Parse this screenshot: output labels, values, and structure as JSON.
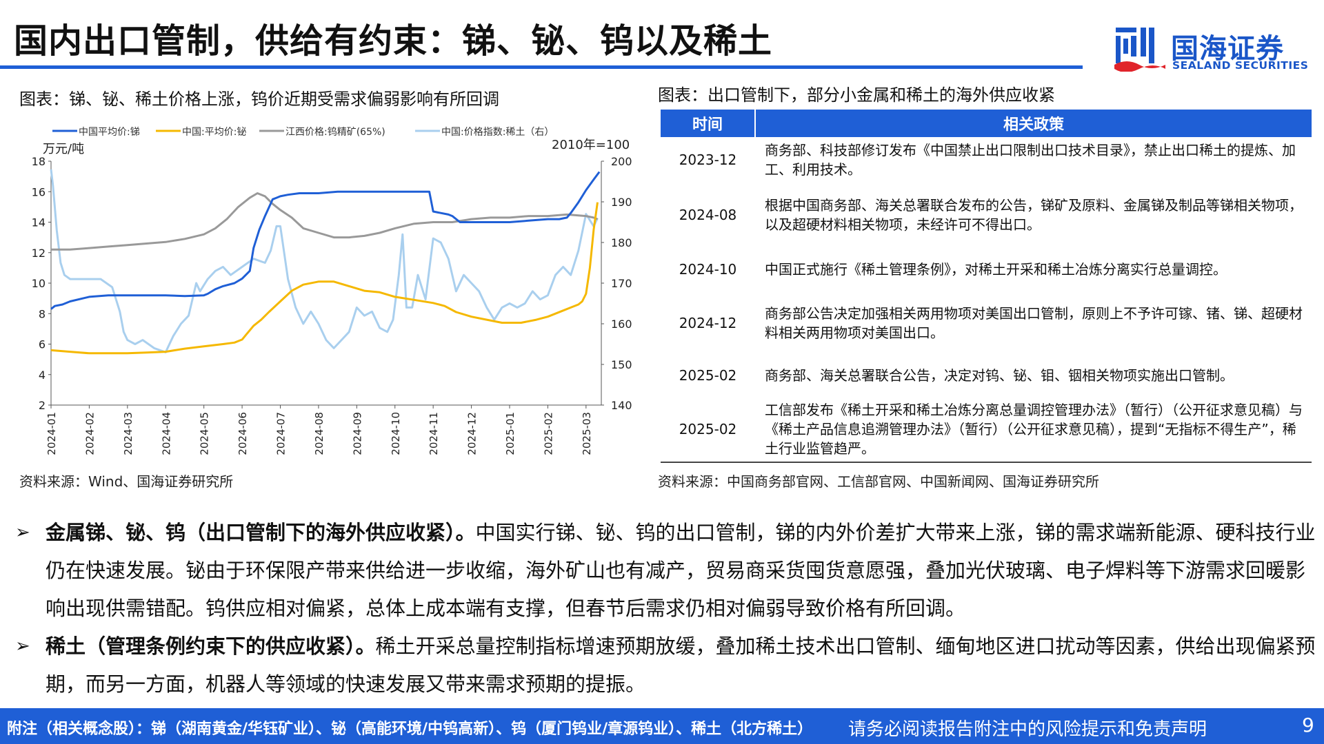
{
  "header": {
    "title": "国内出口管制，供给有约束：锑、铋、钨以及稀土"
  },
  "logo": {
    "name_cn": "国海证券",
    "name_en": "SEALAND SECURITIES"
  },
  "left_figure": {
    "caption": "图表：锑、铋、稀土价格上涨，钨价近期受需求偏弱影响有所回调",
    "source": "资料来源：Wind、国海证券研究所"
  },
  "chart_data": {
    "type": "line",
    "legend_position": "top",
    "left_unit": "万元/吨",
    "right_unit": "2010年=100",
    "x_ticks": [
      "2024-01",
      "2024-02",
      "2024-03",
      "2024-04",
      "2024-05",
      "2024-06",
      "2024-07",
      "2024-08",
      "2024-09",
      "2024-10",
      "2024-11",
      "2024-12",
      "2025-01",
      "2025-02",
      "2025-03"
    ],
    "ylim": [
      2,
      18
    ],
    "y_ticks": [
      2,
      4,
      6,
      8,
      10,
      12,
      14,
      16,
      18
    ],
    "ylim_right": [
      140,
      200
    ],
    "y_ticks_right": [
      140,
      150,
      160,
      170,
      180,
      190,
      200
    ],
    "x_domain": [
      0,
      14.4
    ],
    "series": [
      {
        "name": "中国平均价:锑",
        "color": "#1f5fd6",
        "axis": "left",
        "x": [
          0,
          0.1,
          0.3,
          0.5,
          1,
          1.5,
          2,
          2.5,
          3,
          3.5,
          4,
          4.1,
          4.3,
          4.5,
          4.8,
          5.0,
          5.2,
          5.3,
          5.45,
          5.6,
          5.8,
          5.9,
          6.0,
          6.2,
          6.5,
          7.0,
          7.5,
          8.0,
          8.5,
          9.0,
          9.5,
          9.9,
          10.0,
          10.2,
          10.4,
          10.5,
          10.7,
          11.0,
          11.5,
          12.0,
          12.5,
          13.0,
          13.3,
          13.5,
          13.6,
          13.8,
          14.0,
          14.2,
          14.35
        ],
        "y": [
          8.3,
          8.5,
          8.6,
          8.8,
          9.1,
          9.2,
          9.2,
          9.2,
          9.2,
          9.15,
          9.2,
          9.3,
          9.6,
          9.8,
          10.0,
          10.3,
          10.8,
          12.3,
          13.5,
          14.4,
          15.5,
          15.6,
          15.7,
          15.8,
          15.9,
          15.9,
          16.0,
          16.0,
          16.0,
          16.0,
          16.0,
          16.0,
          14.7,
          14.6,
          14.5,
          14.4,
          14.0,
          14.0,
          14.0,
          14.0,
          14.1,
          14.2,
          14.2,
          14.3,
          14.6,
          15.3,
          16.1,
          16.8,
          17.3
        ]
      },
      {
        "name": "中国:平均价:铋",
        "color": "#f5b800",
        "axis": "left",
        "x": [
          0,
          0.5,
          1,
          1.5,
          2,
          2.5,
          3,
          3.5,
          4,
          4.5,
          4.8,
          4.9,
          5.0,
          5.1,
          5.3,
          5.5,
          5.7,
          6.0,
          6.3,
          6.6,
          7.0,
          7.4,
          7.8,
          8.2,
          8.6,
          9.0,
          9.5,
          10.0,
          10.3,
          10.6,
          11.0,
          11.4,
          11.8,
          12.3,
          12.7,
          13.0,
          13.4,
          13.6,
          13.8,
          13.9,
          14.0,
          14.1,
          14.2,
          14.3
        ],
        "y": [
          5.6,
          5.5,
          5.4,
          5.4,
          5.4,
          5.45,
          5.5,
          5.7,
          5.85,
          6.0,
          6.1,
          6.2,
          6.3,
          6.6,
          7.2,
          7.6,
          8.1,
          8.8,
          9.5,
          9.9,
          10.1,
          10.1,
          9.8,
          9.5,
          9.4,
          9.1,
          8.9,
          8.7,
          8.5,
          8.1,
          7.8,
          7.6,
          7.4,
          7.4,
          7.6,
          7.8,
          8.2,
          8.4,
          8.6,
          8.8,
          9.3,
          11.0,
          13.5,
          15.3
        ]
      },
      {
        "name": "江西价格:钨精矿(65%)",
        "color": "#999999",
        "axis": "left",
        "x": [
          0,
          0.5,
          1,
          1.5,
          2,
          2.5,
          3,
          3.5,
          4,
          4.3,
          4.6,
          4.9,
          5.2,
          5.4,
          5.6,
          5.8,
          6.0,
          6.3,
          6.6,
          7.0,
          7.4,
          7.8,
          8.2,
          8.6,
          9.0,
          9.5,
          10.0,
          10.5,
          11.0,
          11.5,
          12.0,
          12.5,
          13.0,
          13.5,
          14.0,
          14.2,
          14.3
        ],
        "y": [
          12.2,
          12.2,
          12.3,
          12.4,
          12.5,
          12.6,
          12.7,
          12.9,
          13.2,
          13.6,
          14.2,
          15.0,
          15.6,
          15.9,
          15.7,
          15.2,
          14.8,
          14.3,
          13.6,
          13.3,
          13.0,
          13.0,
          13.1,
          13.3,
          13.6,
          13.9,
          14.0,
          14.0,
          14.2,
          14.3,
          14.3,
          14.4,
          14.4,
          14.5,
          14.4,
          14.3,
          14.2
        ]
      },
      {
        "name": "中国:价格指数:稀土（右）",
        "color": "#a9cfee",
        "axis": "right",
        "x": [
          0,
          0.05,
          0.15,
          0.25,
          0.35,
          0.5,
          0.7,
          1.0,
          1.3,
          1.6,
          1.8,
          1.9,
          2.0,
          2.2,
          2.4,
          2.7,
          3.0,
          3.2,
          3.4,
          3.6,
          3.8,
          3.9,
          4.1,
          4.3,
          4.5,
          4.7,
          5.0,
          5.3,
          5.6,
          5.75,
          5.9,
          6.0,
          6.2,
          6.4,
          6.6,
          6.8,
          7.0,
          7.2,
          7.4,
          7.6,
          7.8,
          8.0,
          8.2,
          8.4,
          8.6,
          8.8,
          8.95,
          9.1,
          9.2,
          9.3,
          9.45,
          9.6,
          9.8,
          10.0,
          10.2,
          10.4,
          10.6,
          10.8,
          11.0,
          11.2,
          11.4,
          11.6,
          11.8,
          12.0,
          12.2,
          12.4,
          12.6,
          12.8,
          13.0,
          13.2,
          13.4,
          13.6,
          13.8,
          14.0,
          14.2,
          14.3
        ],
        "y": [
          198,
          194,
          183,
          175,
          172,
          171,
          171,
          171,
          171,
          169,
          163,
          158,
          156,
          155,
          156,
          154,
          153,
          157,
          160,
          162,
          170,
          168,
          171,
          173,
          174,
          172,
          174,
          176,
          175,
          178,
          184,
          184,
          171,
          164,
          160,
          163,
          160,
          156,
          154,
          156,
          158,
          164,
          162,
          163,
          159,
          158,
          161,
          172,
          182,
          164,
          164,
          172,
          166,
          181,
          180,
          176,
          168,
          172,
          170,
          168,
          164,
          161,
          164,
          165,
          164,
          165,
          168,
          166,
          167,
          172,
          174,
          172,
          178,
          187,
          184,
          186
        ]
      }
    ]
  },
  "right_table": {
    "caption": "图表：出口管制下，部分小金属和稀土的海外供应收紧",
    "headers": [
      "时间",
      "相关政策"
    ],
    "rows": [
      {
        "date": "2023-12",
        "policy": "商务部、科技部修订发布《中国禁止出口限制出口技术目录》，禁止出口稀土的提炼、加工、利用技术。"
      },
      {
        "date": "2024-08",
        "policy": "根据中国商务部、海关总署联合发布的公告，锑矿及原料、金属锑及制品等锑相关物项，以及超硬材料相关物项，未经许可不得出口。"
      },
      {
        "date": "2024-10",
        "policy": "中国正式施行《稀土管理条例》，对稀土开采和稀土冶炼分离实行总量调控。"
      },
      {
        "date": "2024-12",
        "policy": "商务部公告决定加强相关两用物项对美国出口管制，原则上不予许可镓、锗、锑、超硬材料相关两用物项对美国出口。"
      },
      {
        "date": "2025-02",
        "policy": "商务部、海关总署联合公告，决定对钨、铋、钼、铟相关物项实施出口管制。"
      },
      {
        "date": "2025-02",
        "policy": "工信部发布《稀土开采和稀土冶炼分离总量调控管理办法》（暂行）（公开征求意见稿）与《稀土产品信息追溯管理办法》（暂行）（公开征求意见稿），提到“无指标不得生产”，稀土行业监管趋严。"
      }
    ],
    "source": "资料来源：中国商务部官网、工信部官网、中国新闻网、国海证券研究所"
  },
  "bullets": [
    {
      "marker": "➢",
      "bold": "金属锑、铋、钨（出口管制下的海外供应收紧）。",
      "text": "中国实行锑、铋、钨的出口管制，锑的内外价差扩大带来上涨，锑的需求端新能源、硬科技行业仍在快速发展。铋由于环保限产带来供给进一步收缩，海外矿山也有减产，贸易商采货囤货意愿强，叠加光伏玻璃、电子焊料等下游需求回暖影响出现供需错配。钨供应相对偏紧，总体上成本端有支撑，但春节后需求仍相对偏弱导致价格有所回调。"
    },
    {
      "marker": "➢",
      "bold": "稀土（管理条例约束下的供应收紧）。",
      "text": "稀土开采总量控制指标增速预期放缓，叠加稀土技术出口管制、缅甸地区进口扰动等因素，供给出现偏紧预期，而另一方面，机器人等领域的快速发展又带来需求预期的提振。"
    }
  ],
  "footer": {
    "related": "附注（相关概念股）：锑（湖南黄金/华钰矿业）、铋（高能环境/中钨高新）、钨（厦门钨业/章源钨业）、稀土（北方稀土）",
    "disclaimer": "请务必阅读报告附注中的风险提示和免责声明",
    "page": "9"
  }
}
